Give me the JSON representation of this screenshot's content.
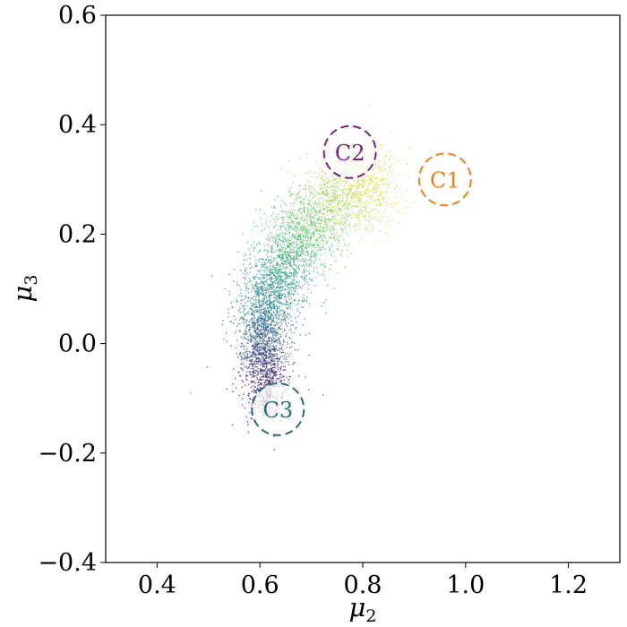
{
  "chart_data": {
    "type": "scatter",
    "title": "",
    "xlabel": "μ",
    "xlabel_sub": "2",
    "ylabel": "μ",
    "ylabel_sub": "3",
    "xlim": [
      0.3,
      1.3
    ],
    "ylim": [
      -0.4,
      0.6
    ],
    "xticks": [
      0.4,
      0.6,
      0.8,
      1.0,
      1.2
    ],
    "xtick_labels": [
      "0.4",
      "0.6",
      "0.8",
      "1.0",
      "1.2"
    ],
    "yticks": [
      -0.4,
      -0.2,
      0.0,
      0.2,
      0.4,
      0.6
    ],
    "ytick_labels": [
      "−0.4",
      "−0.2",
      "0.0",
      "0.2",
      "0.4",
      "0.6"
    ],
    "grid": false,
    "colormap": "viridis",
    "series": [
      {
        "points": [
          [
            0.6,
            -0.12
          ],
          [
            0.61,
            -0.08
          ],
          [
            0.62,
            -0.05
          ],
          [
            0.6,
            -0.02
          ],
          [
            0.61,
            0.0
          ],
          [
            0.61,
            0.03
          ],
          [
            0.61,
            0.06
          ],
          [
            0.62,
            0.09
          ],
          [
            0.63,
            0.12
          ],
          [
            0.65,
            0.15
          ],
          [
            0.67,
            0.18
          ],
          [
            0.69,
            0.21
          ],
          [
            0.72,
            0.24
          ],
          [
            0.76,
            0.27
          ],
          [
            0.8,
            0.29
          ],
          [
            0.82,
            0.3
          ],
          [
            0.78,
            0.35
          ],
          [
            0.74,
            0.32
          ]
        ]
      }
    ],
    "annotations": [
      {
        "label": "C1",
        "x": 0.96,
        "y": 0.3,
        "color": "#f07f1a"
      },
      {
        "label": "C2",
        "x": 0.775,
        "y": 0.35,
        "color": "#7b1f86"
      },
      {
        "label": "C3",
        "x": 0.635,
        "y": -0.12,
        "color": "#23707a"
      }
    ]
  }
}
